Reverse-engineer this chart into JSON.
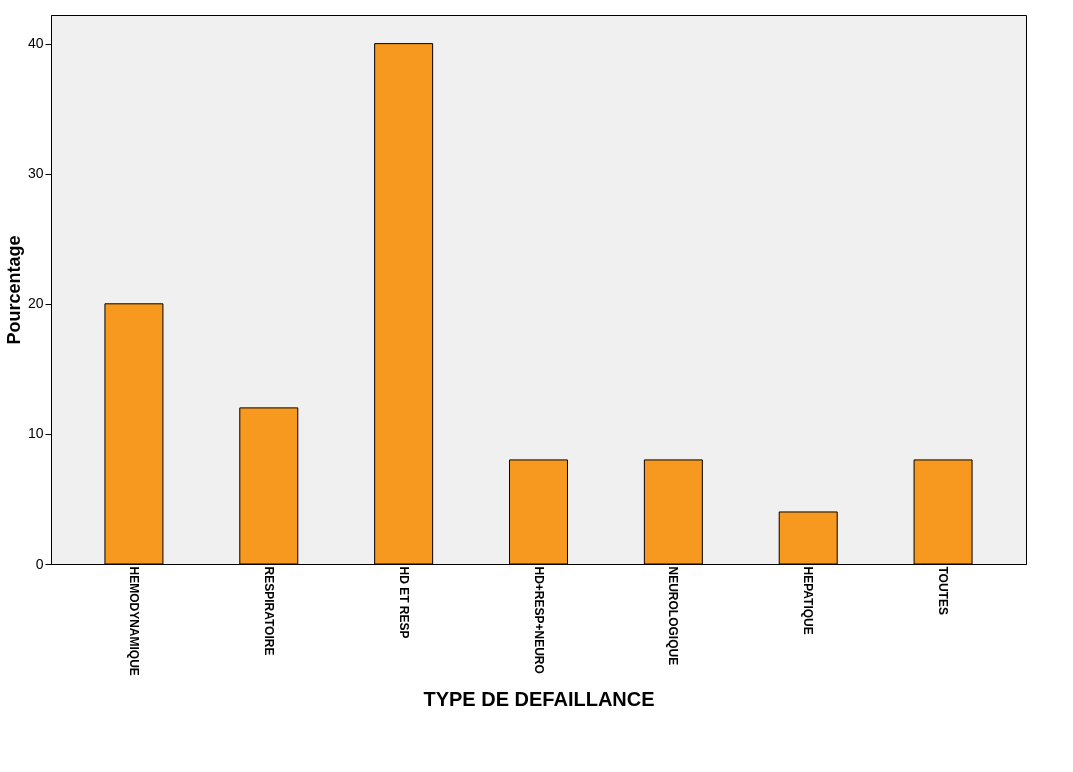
{
  "chart_data": {
    "type": "bar",
    "xlabel": "TYPE DE DEFAILLANCE",
    "ylabel": "Pourcentage",
    "categories": [
      "HEMODYNAMIQUE",
      "RESPIRATOIRE",
      "HD ET RESP",
      "HD+RESP+NEURO",
      "NEUROLOGIQUE",
      "HEPATIQUE",
      "TOUTES"
    ],
    "values": [
      20,
      12,
      40,
      8,
      8,
      4,
      8
    ],
    "color": "#f7991f",
    "ylim": [
      0,
      42.2
    ],
    "yticks": [
      0,
      10,
      20,
      30,
      40
    ],
    "grid": false
  }
}
